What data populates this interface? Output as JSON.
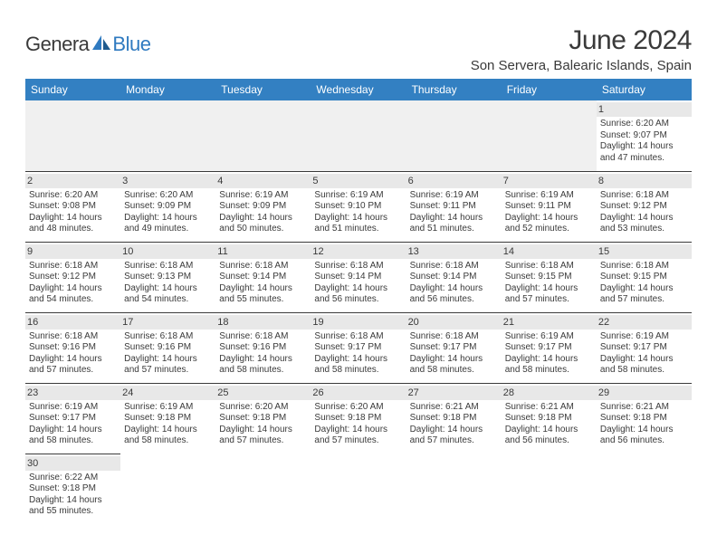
{
  "logo": {
    "text1": "Genera",
    "text2": "Blue"
  },
  "title": "June 2024",
  "location": "Son Servera, Balearic Islands, Spain",
  "colors": {
    "header_bg": "#3380c2",
    "header_text": "#ffffff",
    "text": "#3a3a3a",
    "logo_blue": "#2f7ac0",
    "daynum_bg": "#e8e8e8",
    "border": "#3a3a3a",
    "empty_bg": "#f0f0f0"
  },
  "weekdays": [
    "Sunday",
    "Monday",
    "Tuesday",
    "Wednesday",
    "Thursday",
    "Friday",
    "Saturday"
  ],
  "weeks": [
    [
      null,
      null,
      null,
      null,
      null,
      null,
      {
        "n": "1",
        "sr": "6:20 AM",
        "ss": "9:07 PM",
        "dl": "14 hours and 47 minutes."
      }
    ],
    [
      {
        "n": "2",
        "sr": "6:20 AM",
        "ss": "9:08 PM",
        "dl": "14 hours and 48 minutes."
      },
      {
        "n": "3",
        "sr": "6:20 AM",
        "ss": "9:09 PM",
        "dl": "14 hours and 49 minutes."
      },
      {
        "n": "4",
        "sr": "6:19 AM",
        "ss": "9:09 PM",
        "dl": "14 hours and 50 minutes."
      },
      {
        "n": "5",
        "sr": "6:19 AM",
        "ss": "9:10 PM",
        "dl": "14 hours and 51 minutes."
      },
      {
        "n": "6",
        "sr": "6:19 AM",
        "ss": "9:11 PM",
        "dl": "14 hours and 51 minutes."
      },
      {
        "n": "7",
        "sr": "6:19 AM",
        "ss": "9:11 PM",
        "dl": "14 hours and 52 minutes."
      },
      {
        "n": "8",
        "sr": "6:18 AM",
        "ss": "9:12 PM",
        "dl": "14 hours and 53 minutes."
      }
    ],
    [
      {
        "n": "9",
        "sr": "6:18 AM",
        "ss": "9:12 PM",
        "dl": "14 hours and 54 minutes."
      },
      {
        "n": "10",
        "sr": "6:18 AM",
        "ss": "9:13 PM",
        "dl": "14 hours and 54 minutes."
      },
      {
        "n": "11",
        "sr": "6:18 AM",
        "ss": "9:14 PM",
        "dl": "14 hours and 55 minutes."
      },
      {
        "n": "12",
        "sr": "6:18 AM",
        "ss": "9:14 PM",
        "dl": "14 hours and 56 minutes."
      },
      {
        "n": "13",
        "sr": "6:18 AM",
        "ss": "9:14 PM",
        "dl": "14 hours and 56 minutes."
      },
      {
        "n": "14",
        "sr": "6:18 AM",
        "ss": "9:15 PM",
        "dl": "14 hours and 57 minutes."
      },
      {
        "n": "15",
        "sr": "6:18 AM",
        "ss": "9:15 PM",
        "dl": "14 hours and 57 minutes."
      }
    ],
    [
      {
        "n": "16",
        "sr": "6:18 AM",
        "ss": "9:16 PM",
        "dl": "14 hours and 57 minutes."
      },
      {
        "n": "17",
        "sr": "6:18 AM",
        "ss": "9:16 PM",
        "dl": "14 hours and 57 minutes."
      },
      {
        "n": "18",
        "sr": "6:18 AM",
        "ss": "9:16 PM",
        "dl": "14 hours and 58 minutes."
      },
      {
        "n": "19",
        "sr": "6:18 AM",
        "ss": "9:17 PM",
        "dl": "14 hours and 58 minutes."
      },
      {
        "n": "20",
        "sr": "6:18 AM",
        "ss": "9:17 PM",
        "dl": "14 hours and 58 minutes."
      },
      {
        "n": "21",
        "sr": "6:19 AM",
        "ss": "9:17 PM",
        "dl": "14 hours and 58 minutes."
      },
      {
        "n": "22",
        "sr": "6:19 AM",
        "ss": "9:17 PM",
        "dl": "14 hours and 58 minutes."
      }
    ],
    [
      {
        "n": "23",
        "sr": "6:19 AM",
        "ss": "9:17 PM",
        "dl": "14 hours and 58 minutes."
      },
      {
        "n": "24",
        "sr": "6:19 AM",
        "ss": "9:18 PM",
        "dl": "14 hours and 58 minutes."
      },
      {
        "n": "25",
        "sr": "6:20 AM",
        "ss": "9:18 PM",
        "dl": "14 hours and 57 minutes."
      },
      {
        "n": "26",
        "sr": "6:20 AM",
        "ss": "9:18 PM",
        "dl": "14 hours and 57 minutes."
      },
      {
        "n": "27",
        "sr": "6:21 AM",
        "ss": "9:18 PM",
        "dl": "14 hours and 57 minutes."
      },
      {
        "n": "28",
        "sr": "6:21 AM",
        "ss": "9:18 PM",
        "dl": "14 hours and 56 minutes."
      },
      {
        "n": "29",
        "sr": "6:21 AM",
        "ss": "9:18 PM",
        "dl": "14 hours and 56 minutes."
      }
    ],
    [
      {
        "n": "30",
        "sr": "6:22 AM",
        "ss": "9:18 PM",
        "dl": "14 hours and 55 minutes."
      },
      null,
      null,
      null,
      null,
      null,
      null
    ]
  ],
  "labels": {
    "sunrise": "Sunrise:",
    "sunset": "Sunset:",
    "daylight": "Daylight:"
  }
}
